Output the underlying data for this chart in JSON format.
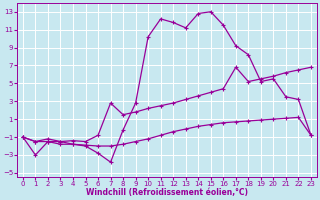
{
  "xlabel": "Windchill (Refroidissement éolien,°C)",
  "xlim": [
    -0.5,
    23.5
  ],
  "ylim": [
    -5.5,
    14.0
  ],
  "xticks": [
    0,
    1,
    2,
    3,
    4,
    5,
    6,
    7,
    8,
    9,
    10,
    11,
    12,
    13,
    14,
    15,
    16,
    17,
    18,
    19,
    20,
    21,
    22,
    23
  ],
  "yticks": [
    -5,
    -3,
    -1,
    1,
    3,
    5,
    7,
    9,
    11,
    13
  ],
  "bg_color": "#c8e8f0",
  "line_color": "#990099",
  "grid_color": "#b0d8e4",
  "line1_x": [
    0,
    1,
    2,
    3,
    4,
    5,
    6,
    7,
    8,
    9,
    10,
    11,
    12,
    13,
    14,
    15,
    16,
    17,
    18,
    19,
    20,
    21,
    22,
    23
  ],
  "line1_y": [
    -1.0,
    -3.0,
    -1.5,
    -1.5,
    -1.8,
    -2.0,
    -2.8,
    -3.8,
    -0.2,
    2.8,
    10.2,
    12.2,
    11.8,
    11.2,
    12.8,
    13.0,
    11.5,
    9.2,
    8.2,
    5.2,
    5.5,
    3.5,
    3.2,
    -0.8
  ],
  "line2_x": [
    0,
    1,
    2,
    3,
    4,
    5,
    6,
    7,
    8,
    9,
    10,
    11,
    12,
    13,
    14,
    15,
    16,
    17,
    18,
    19,
    20,
    21,
    22,
    23
  ],
  "line2_y": [
    -1.0,
    -1.5,
    -1.2,
    -1.5,
    -1.4,
    -1.5,
    -0.8,
    2.8,
    1.5,
    1.8,
    2.2,
    2.5,
    2.8,
    3.2,
    3.6,
    4.0,
    4.4,
    6.8,
    5.2,
    5.5,
    5.8,
    6.2,
    6.5,
    6.8
  ],
  "line3_x": [
    0,
    1,
    2,
    3,
    4,
    5,
    6,
    7,
    8,
    9,
    10,
    11,
    12,
    13,
    14,
    15,
    16,
    17,
    18,
    19,
    20,
    21,
    22,
    23
  ],
  "line3_y": [
    -1.0,
    -1.5,
    -1.5,
    -1.8,
    -1.8,
    -1.9,
    -2.0,
    -2.0,
    -1.8,
    -1.5,
    -1.2,
    -0.8,
    -0.4,
    -0.1,
    0.2,
    0.4,
    0.6,
    0.7,
    0.8,
    0.9,
    1.0,
    1.1,
    1.2,
    -0.8
  ]
}
